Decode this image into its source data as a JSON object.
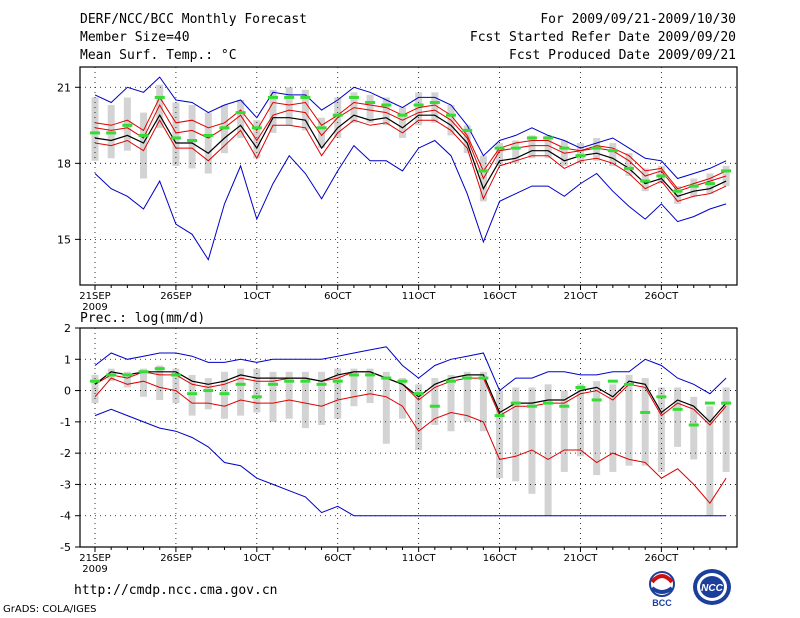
{
  "header": {
    "title": "DERF/NCC/BCC Monthly Forecast",
    "member_size": "Member Size=40",
    "variable": "Mean Surf. Temp.: °C",
    "period": "For 2009/09/21-2009/10/30",
    "started": "Fcst Started Refer Date 2009/09/20",
    "produced": "Fcst Produced Date 2009/09/21"
  },
  "footer": {
    "url": "http://cmdp.ncc.cma.gov.cn",
    "grads": "GrADS: COLA/IGES",
    "logo_bcc": "BCC",
    "logo_ncc": "NCC"
  },
  "colors": {
    "max_min": "#0000c8",
    "mean": "#000000",
    "median": "#e00000",
    "box": "#d3d3d3",
    "clim": "#33dd33"
  },
  "chart_data": [
    {
      "type": "line",
      "title": "Mean Surf. Temp.: °C",
      "ylim": [
        13.2,
        21.8
      ],
      "yticks": [
        15,
        18,
        21
      ],
      "xlabels": [
        "21SEP",
        "26SEP",
        "1OCT",
        "6OCT",
        "11OCT",
        "16OCT",
        "21OCT",
        "26OCT"
      ],
      "xlabel_days": [
        1,
        6,
        11,
        16,
        21,
        26,
        31,
        36
      ],
      "year_label": "2009",
      "days": 40,
      "series": [
        {
          "name": "max",
          "values": [
            20.7,
            20.4,
            21.0,
            20.8,
            21.4,
            20.5,
            20.4,
            20.0,
            20.3,
            20.5,
            19.8,
            20.8,
            20.7,
            20.7,
            20.1,
            20.5,
            21.0,
            20.8,
            20.5,
            20.2,
            20.6,
            20.6,
            20.3,
            19.5,
            18.3,
            18.9,
            19.1,
            19.4,
            19.1,
            18.9,
            18.6,
            18.8,
            19.0,
            18.6,
            18.2,
            18.1,
            17.4,
            17.6,
            17.8,
            18.1
          ]
        },
        {
          "name": "q75",
          "values": [
            19.6,
            19.5,
            19.7,
            19.3,
            20.6,
            19.6,
            19.7,
            19.4,
            19.6,
            20.1,
            19.3,
            20.4,
            20.3,
            20.4,
            19.5,
            19.9,
            20.4,
            20.3,
            20.2,
            19.9,
            20.2,
            20.3,
            19.9,
            19.1,
            17.7,
            18.6,
            18.8,
            18.9,
            18.9,
            18.6,
            18.5,
            18.7,
            18.6,
            18.3,
            17.7,
            17.8,
            17.0,
            17.2,
            17.4,
            17.7
          ]
        },
        {
          "name": "median",
          "values": [
            19.4,
            19.3,
            19.4,
            19.0,
            20.3,
            19.2,
            19.3,
            19.0,
            19.4,
            19.9,
            18.9,
            19.9,
            20.1,
            20.0,
            19.1,
            19.8,
            20.2,
            20.1,
            20.0,
            19.7,
            20.0,
            20.1,
            19.7,
            19.0,
            17.4,
            18.5,
            18.6,
            18.7,
            18.7,
            18.4,
            18.5,
            18.6,
            18.5,
            18.1,
            17.5,
            17.7,
            16.9,
            17.1,
            17.3,
            17.5
          ]
        },
        {
          "name": "mean",
          "values": [
            19.0,
            18.9,
            19.1,
            18.8,
            19.9,
            18.8,
            18.8,
            18.4,
            19.0,
            19.5,
            18.6,
            19.8,
            19.8,
            19.7,
            18.6,
            19.4,
            19.9,
            19.7,
            19.8,
            19.4,
            19.9,
            19.9,
            19.5,
            18.8,
            17.0,
            18.1,
            18.2,
            18.5,
            18.5,
            18.1,
            18.3,
            18.4,
            18.2,
            17.8,
            17.2,
            17.4,
            16.7,
            16.9,
            17.0,
            17.3
          ]
        },
        {
          "name": "q25",
          "values": [
            18.8,
            18.7,
            18.9,
            18.5,
            19.7,
            18.6,
            18.6,
            18.1,
            18.7,
            19.3,
            18.2,
            19.5,
            19.5,
            19.4,
            18.3,
            19.2,
            19.7,
            19.5,
            19.6,
            19.2,
            19.7,
            19.7,
            19.3,
            18.6,
            16.6,
            17.9,
            18.1,
            18.3,
            18.3,
            17.8,
            18.1,
            18.2,
            18.0,
            17.6,
            17.0,
            17.3,
            16.5,
            16.7,
            16.8,
            17.1
          ]
        },
        {
          "name": "min",
          "values": [
            17.6,
            17.0,
            16.7,
            16.2,
            17.3,
            15.6,
            15.2,
            14.2,
            16.4,
            17.9,
            15.8,
            17.2,
            18.3,
            17.6,
            16.6,
            17.7,
            18.7,
            18.1,
            18.1,
            17.7,
            18.6,
            18.9,
            18.3,
            16.8,
            14.9,
            16.5,
            16.8,
            17.1,
            17.1,
            16.7,
            17.2,
            17.6,
            16.9,
            16.3,
            15.8,
            16.4,
            15.7,
            15.9,
            16.2,
            16.4
          ]
        },
        {
          "name": "box_top",
          "values": [
            20.6,
            20.3,
            20.6,
            20.0,
            21.1,
            20.4,
            20.3,
            20.0,
            20.3,
            20.5,
            19.7,
            20.9,
            21.0,
            20.9,
            19.8,
            20.6,
            20.8,
            20.7,
            20.6,
            20.2,
            20.8,
            20.8,
            20.3,
            19.5,
            18.3,
            18.8,
            18.9,
            19.1,
            19.1,
            18.9,
            18.8,
            19.0,
            18.8,
            18.4,
            17.8,
            17.9,
            17.1,
            17.4,
            17.6,
            17.9
          ]
        },
        {
          "name": "box_bottom",
          "values": [
            18.1,
            18.2,
            18.5,
            17.4,
            19.4,
            17.9,
            17.8,
            17.6,
            18.4,
            19.0,
            18.2,
            19.2,
            19.5,
            19.3,
            18.6,
            19.0,
            19.6,
            19.6,
            19.5,
            19.0,
            19.5,
            19.6,
            19.1,
            18.4,
            16.5,
            17.9,
            18.0,
            18.2,
            18.2,
            17.9,
            18.0,
            18.1,
            17.9,
            17.5,
            16.9,
            17.2,
            16.4,
            16.7,
            16.8,
            17.1
          ]
        },
        {
          "name": "clim",
          "values": [
            19.2,
            19.2,
            19.5,
            19.1,
            20.6,
            19.0,
            18.9,
            19.1,
            19.4,
            20.0,
            19.4,
            20.6,
            20.6,
            20.6,
            19.4,
            19.9,
            20.6,
            20.4,
            20.3,
            19.9,
            20.3,
            20.4,
            19.9,
            19.3,
            17.7,
            18.6,
            18.6,
            19.0,
            19.0,
            18.6,
            18.3,
            18.6,
            18.5,
            17.8,
            17.3,
            17.5,
            16.9,
            17.1,
            17.2,
            17.7
          ]
        }
      ]
    },
    {
      "type": "line",
      "title": "Prec.: log(mm/d)",
      "ylim": [
        -5,
        2
      ],
      "yticks": [
        -5,
        -4,
        -3,
        -2,
        -1,
        0,
        1,
        2
      ],
      "xlabels": [
        "21SEP",
        "26SEP",
        "1OCT",
        "6OCT",
        "11OCT",
        "16OCT",
        "21OCT",
        "26OCT"
      ],
      "xlabel_days": [
        1,
        6,
        11,
        16,
        21,
        26,
        31,
        36
      ],
      "year_label": "2009",
      "days": 40,
      "series": [
        {
          "name": "max",
          "values": [
            0.8,
            1.2,
            1.0,
            1.1,
            1.2,
            1.2,
            1.1,
            0.9,
            0.9,
            1.0,
            0.9,
            1.0,
            1.0,
            1.0,
            1.0,
            1.1,
            1.2,
            1.3,
            1.4,
            0.8,
            0.4,
            0.8,
            1.0,
            1.1,
            1.2,
            0.0,
            0.4,
            0.4,
            0.6,
            0.6,
            0.5,
            0.5,
            0.6,
            0.6,
            1.0,
            0.8,
            0.4,
            0.2,
            -0.1,
            0.4
          ]
        },
        {
          "name": "mean",
          "values": [
            0.2,
            0.6,
            0.5,
            0.6,
            0.6,
            0.6,
            0.3,
            0.2,
            0.3,
            0.5,
            0.4,
            0.4,
            0.4,
            0.4,
            0.3,
            0.5,
            0.6,
            0.6,
            0.4,
            0.2,
            -0.2,
            0.2,
            0.4,
            0.5,
            0.5,
            -0.7,
            -0.4,
            -0.4,
            -0.3,
            -0.3,
            0.0,
            0.1,
            -0.2,
            0.3,
            0.2,
            -0.7,
            -0.3,
            -0.5,
            -1.0,
            -0.4
          ]
        },
        {
          "name": "median",
          "values": [
            0.2,
            0.5,
            0.4,
            0.6,
            0.5,
            0.5,
            0.2,
            0.1,
            0.2,
            0.4,
            0.3,
            0.3,
            0.4,
            0.4,
            0.3,
            0.4,
            0.6,
            0.6,
            0.4,
            0.2,
            -0.3,
            0.1,
            0.3,
            0.4,
            0.4,
            -0.8,
            -0.5,
            -0.5,
            -0.4,
            -0.4,
            -0.1,
            0.0,
            -0.3,
            0.2,
            0.1,
            -0.8,
            -0.4,
            -0.6,
            -1.1,
            -0.5
          ]
        },
        {
          "name": "q_low",
          "values": [
            -0.2,
            0.4,
            0.2,
            0.3,
            0.1,
            0.0,
            -0.4,
            -0.4,
            -0.5,
            -0.3,
            -0.4,
            -0.4,
            -0.3,
            -0.4,
            -0.5,
            -0.3,
            -0.2,
            -0.1,
            -0.2,
            -0.5,
            -1.3,
            -0.9,
            -0.7,
            -0.8,
            -1.0,
            -2.2,
            -2.1,
            -1.9,
            -2.2,
            -1.9,
            -1.9,
            -2.3,
            -2.0,
            -2.2,
            -2.3,
            -2.8,
            -2.5,
            -3.0,
            -3.6,
            -2.8
          ]
        },
        {
          "name": "min",
          "values": [
            -0.8,
            -0.6,
            -0.8,
            -1.0,
            -1.2,
            -1.3,
            -1.5,
            -1.8,
            -2.3,
            -2.4,
            -2.8,
            -3.0,
            -3.2,
            -3.4,
            -3.9,
            -3.7,
            -4.0,
            -4.0,
            -4.0,
            -4.0,
            -4.0,
            -4.0,
            -4.0,
            -4.0,
            -4.0,
            -4.0,
            -4.0,
            -4.0,
            -4.0,
            -4.0,
            -4.0,
            -4.0,
            -4.0,
            -4.0,
            -4.0,
            -4.0,
            -4.0,
            -4.0,
            -4.0,
            -4.0
          ]
        },
        {
          "name": "box_top",
          "values": [
            0.5,
            0.7,
            0.6,
            0.7,
            0.8,
            0.7,
            0.5,
            0.4,
            0.6,
            0.7,
            0.7,
            0.6,
            0.6,
            0.6,
            0.6,
            0.7,
            0.7,
            0.7,
            0.6,
            0.4,
            0.2,
            0.4,
            0.5,
            0.6,
            0.6,
            0.0,
            0.1,
            0.1,
            0.2,
            0.0,
            0.2,
            0.3,
            0.2,
            0.5,
            0.4,
            0.1,
            0.1,
            -0.2,
            -0.5,
            0.1
          ]
        },
        {
          "name": "box_bottom",
          "values": [
            -0.4,
            0.3,
            0.1,
            -0.2,
            -0.3,
            -0.4,
            -0.8,
            -0.6,
            -0.9,
            -0.8,
            -0.7,
            -1.0,
            -0.9,
            -1.2,
            -1.1,
            -0.9,
            -0.5,
            -0.4,
            -1.7,
            -0.9,
            -1.9,
            -1.1,
            -1.3,
            -1.0,
            -1.3,
            -2.8,
            -2.9,
            -3.3,
            -4.0,
            -2.6,
            -2.1,
            -2.7,
            -2.6,
            -2.4,
            -2.4,
            -2.6,
            -1.8,
            -2.2,
            -4.0,
            -2.6
          ]
        },
        {
          "name": "clim",
          "values": [
            0.3,
            0.5,
            0.5,
            0.6,
            0.7,
            0.5,
            -0.1,
            0.0,
            -0.1,
            0.2,
            -0.2,
            0.2,
            0.3,
            0.3,
            0.2,
            0.3,
            0.5,
            0.5,
            0.4,
            0.3,
            -0.1,
            -0.5,
            0.3,
            0.4,
            0.4,
            -0.8,
            -0.4,
            -0.5,
            -0.4,
            -0.5,
            0.1,
            -0.3,
            0.3,
            0.2,
            -0.7,
            -0.2,
            -0.6,
            -1.1,
            -0.4,
            -0.4
          ]
        }
      ]
    }
  ]
}
